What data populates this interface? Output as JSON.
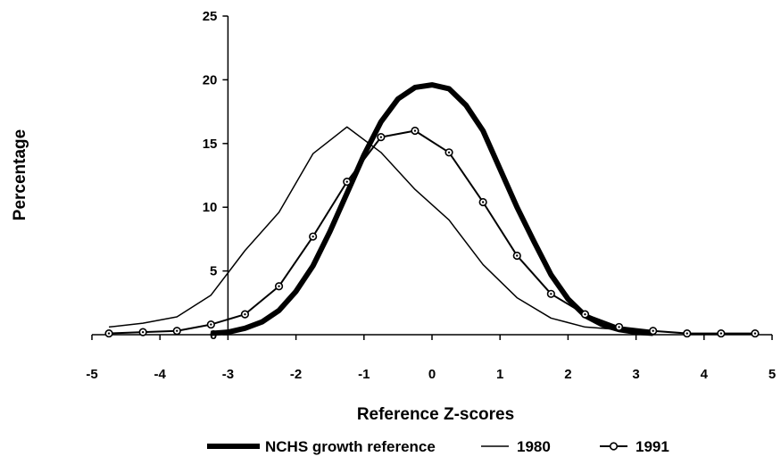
{
  "chart_data": {
    "type": "line",
    "xlabel": "Reference Z-scores",
    "ylabel": "Percentage",
    "xlim": [
      -5,
      5
    ],
    "ylim": [
      0,
      25
    ],
    "x_ticks": [
      -5,
      -4,
      -3,
      -2,
      -1,
      0,
      1,
      2,
      3,
      4,
      5
    ],
    "y_ticks": [
      0,
      5,
      10,
      15,
      20,
      25
    ],
    "grid": false,
    "legend_position": "bottom",
    "series": [
      {
        "name": "NCHS growth reference",
        "style": "thick-line",
        "color": "#000000",
        "x": [
          -3.25,
          -3.0,
          -2.75,
          -2.5,
          -2.25,
          -2.0,
          -1.75,
          -1.5,
          -1.25,
          -1.0,
          -0.75,
          -0.5,
          -0.25,
          0.0,
          0.25,
          0.5,
          0.75,
          1.0,
          1.25,
          1.5,
          1.75,
          2.0,
          2.25,
          2.5,
          2.75,
          3.0,
          3.25
        ],
        "y": [
          0.1,
          0.2,
          0.5,
          1.0,
          1.9,
          3.4,
          5.4,
          8.1,
          11.1,
          14.1,
          16.7,
          18.5,
          19.4,
          19.6,
          19.3,
          18.0,
          16.0,
          13.0,
          10.0,
          7.3,
          4.7,
          2.8,
          1.5,
          0.8,
          0.4,
          0.2,
          0.1
        ]
      },
      {
        "name": "1980",
        "style": "thin-line",
        "color": "#000000",
        "x": [
          -4.75,
          -4.25,
          -3.75,
          -3.25,
          -2.75,
          -2.25,
          -1.75,
          -1.25,
          -0.75,
          -0.25,
          0.25,
          0.75,
          1.25,
          1.75,
          2.25,
          2.75,
          3.25
        ],
        "y": [
          0.6,
          0.9,
          1.4,
          3.1,
          6.6,
          9.6,
          14.2,
          16.3,
          14.3,
          11.4,
          9.0,
          5.5,
          2.9,
          1.3,
          0.6,
          0.4,
          0.3
        ]
      },
      {
        "name": "1991",
        "style": "line-with-markers",
        "color": "#000000",
        "x": [
          -4.75,
          -4.25,
          -3.75,
          -3.25,
          -2.75,
          -2.25,
          -1.75,
          -1.25,
          -0.75,
          -0.25,
          0.25,
          0.75,
          1.25,
          1.75,
          2.25,
          2.75,
          3.25,
          3.75,
          4.25,
          4.75
        ],
        "y": [
          0.1,
          0.2,
          0.3,
          0.8,
          1.6,
          3.8,
          7.7,
          12.0,
          15.5,
          16.0,
          14.3,
          10.4,
          6.2,
          3.2,
          1.6,
          0.6,
          0.3,
          0.1,
          0.1,
          0.1
        ]
      }
    ]
  }
}
